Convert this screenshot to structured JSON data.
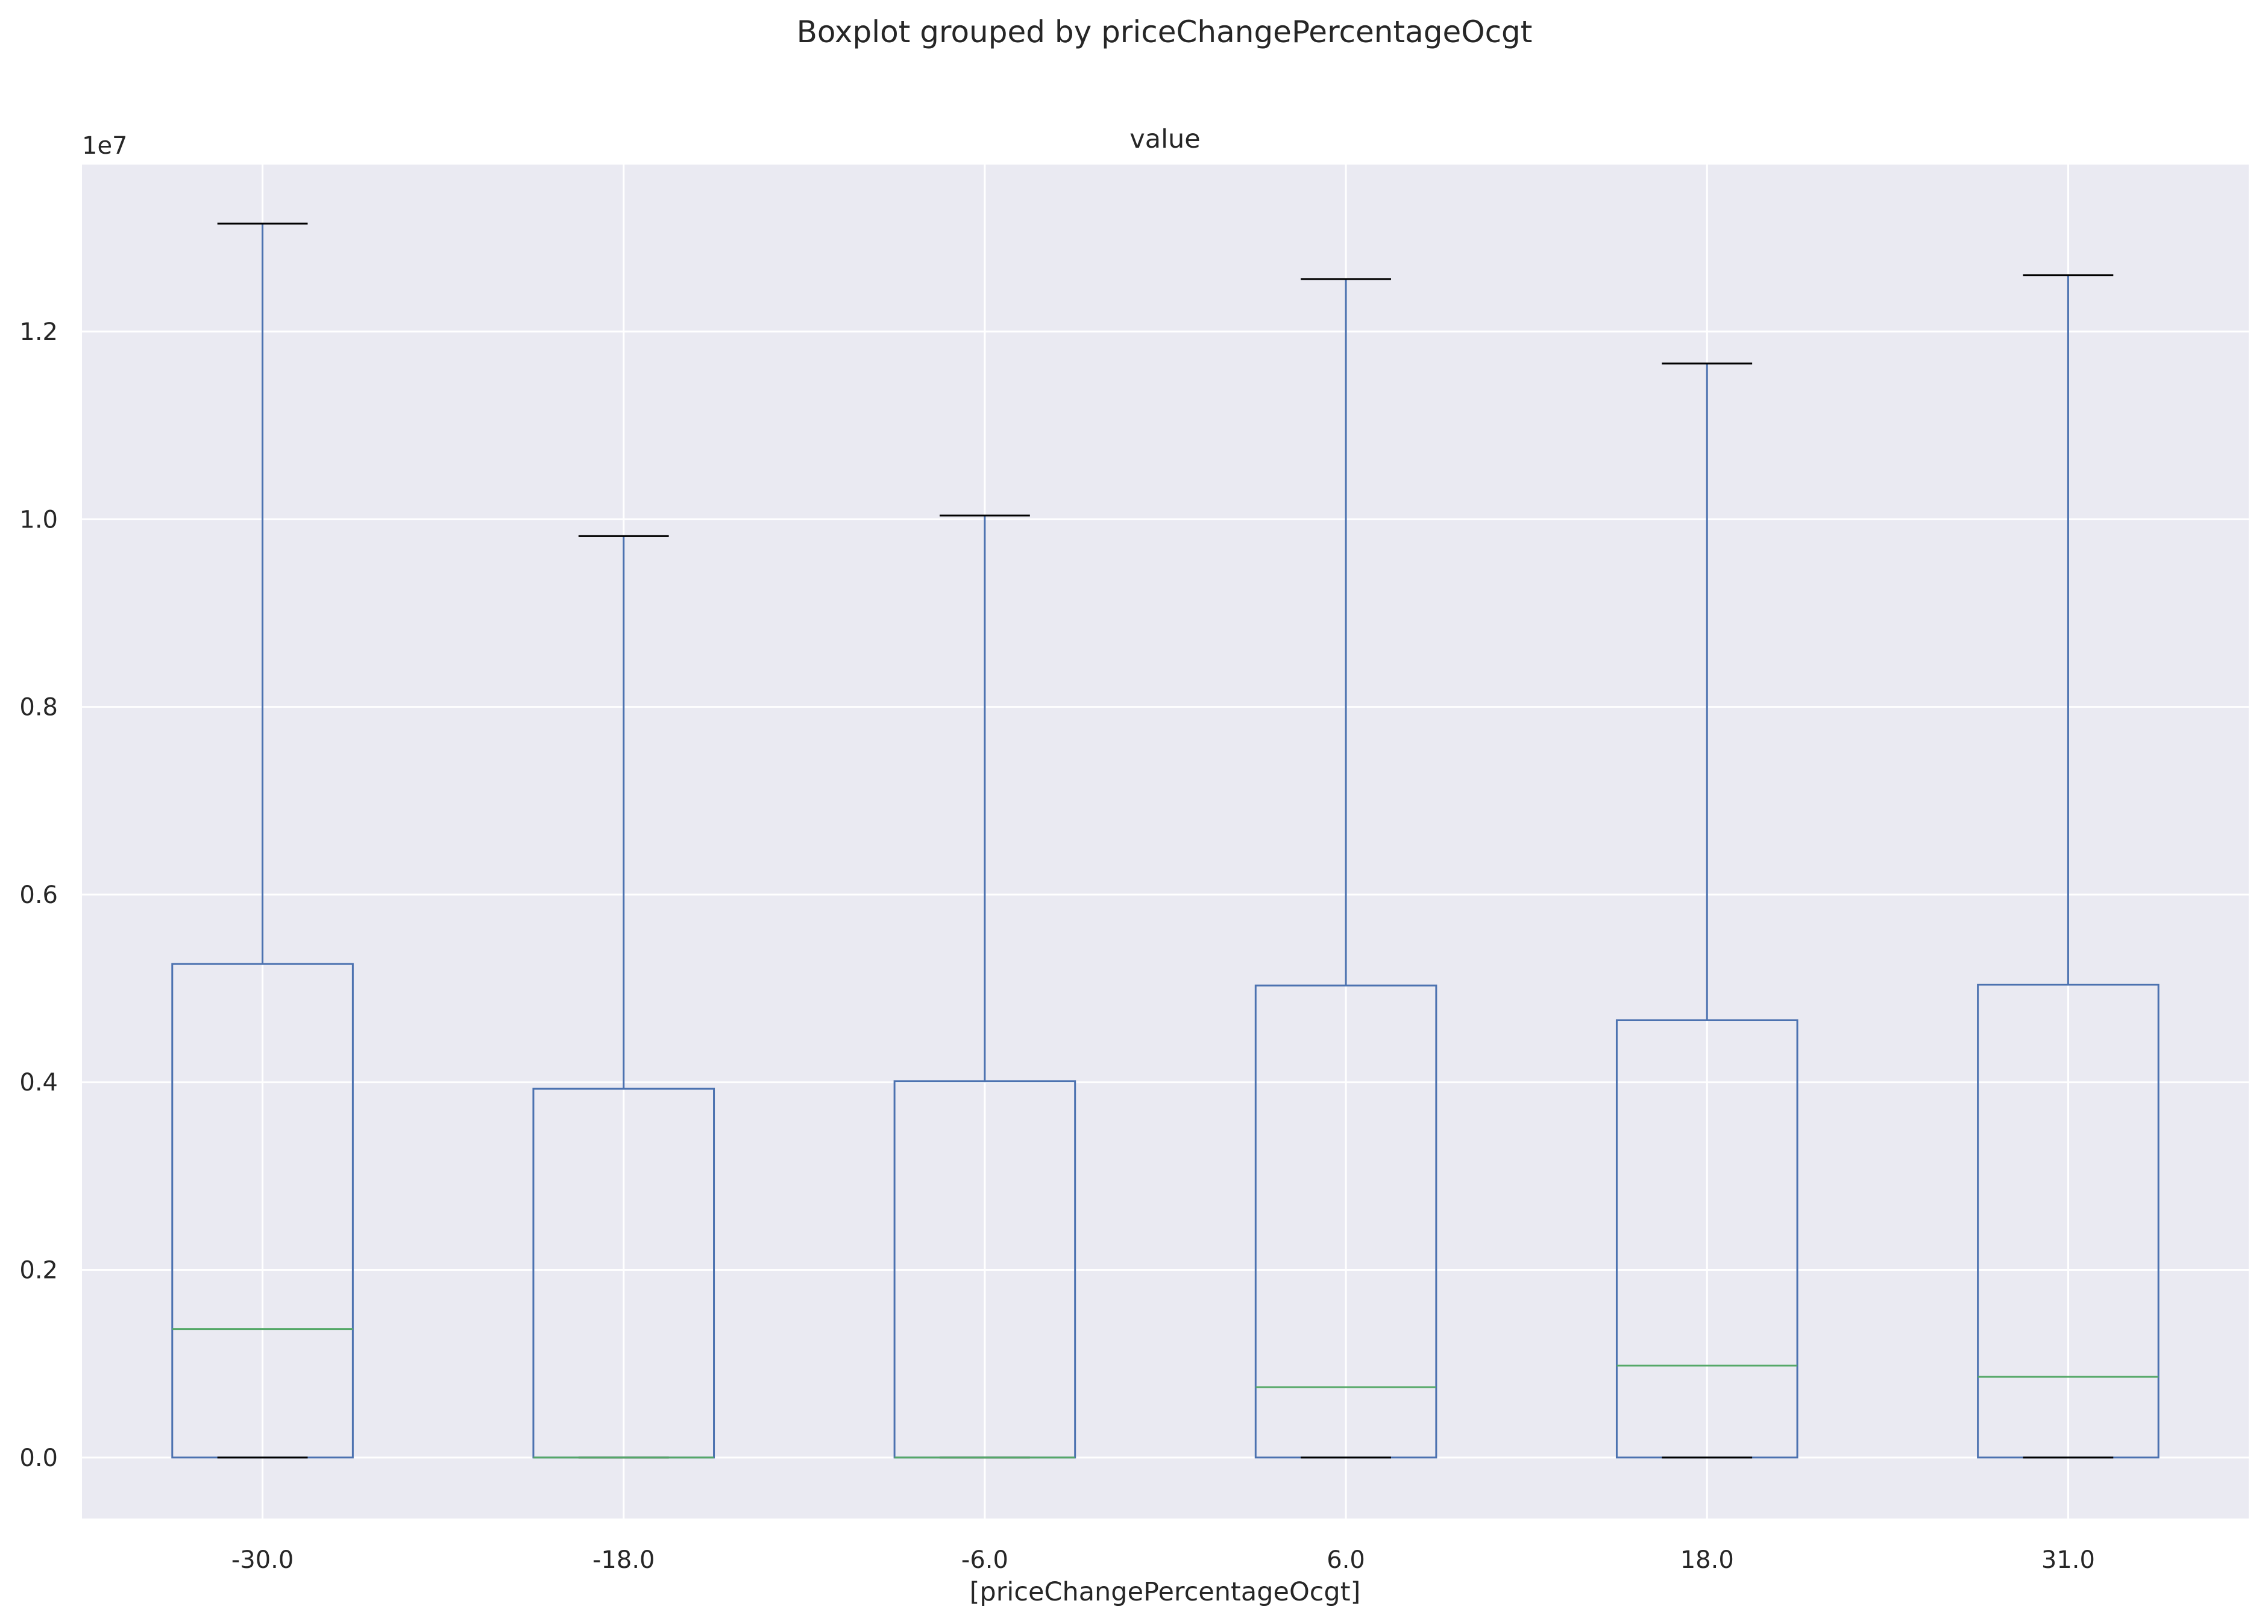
{
  "chart_data": {
    "type": "boxplot",
    "title": "Boxplot grouped by priceChangePercentageOcgt",
    "subplot_title": "value",
    "xlabel": "[priceChangePercentageOcgt]",
    "ylabel": "",
    "y_offset_label": "1e7",
    "y_scale": 10000000,
    "ylim": [
      -0.065,
      1.378
    ],
    "y_ticks": [
      0.0,
      0.2,
      0.4,
      0.6,
      0.8,
      1.0,
      1.2
    ],
    "y_tick_labels": [
      "0.0",
      "0.2",
      "0.4",
      "0.6",
      "0.8",
      "1.0",
      "1.2"
    ],
    "categories": [
      "-30.0",
      "-18.0",
      "-6.0",
      "6.0",
      "18.0",
      "31.0"
    ],
    "boxes": [
      {
        "label": "-30.0",
        "whisker_low": 0.0,
        "q1": 0.0,
        "median": 0.137,
        "q3": 0.526,
        "whisker_high": 1.315
      },
      {
        "label": "-18.0",
        "whisker_low": 0.0,
        "q1": 0.0,
        "median": 0.0,
        "q3": 0.393,
        "whisker_high": 0.982
      },
      {
        "label": "-6.0",
        "whisker_low": 0.0,
        "q1": 0.0,
        "median": 0.0,
        "q3": 0.401,
        "whisker_high": 1.004
      },
      {
        "label": "6.0",
        "whisker_low": 0.0,
        "q1": 0.0,
        "median": 0.075,
        "q3": 0.503,
        "whisker_high": 1.256
      },
      {
        "label": "18.0",
        "whisker_low": 0.0,
        "q1": 0.0,
        "median": 0.098,
        "q3": 0.466,
        "whisker_high": 1.166
      },
      {
        "label": "31.0",
        "whisker_low": 0.0,
        "q1": 0.0,
        "median": 0.086,
        "q3": 0.504,
        "whisker_high": 1.26
      }
    ],
    "grid": true,
    "legend": "none",
    "colors": {
      "background": "#eaeaf2",
      "grid": "#ffffff",
      "box": "#4c72b0",
      "median": "#55a868",
      "caps": "#000000",
      "text": "#262626"
    }
  }
}
